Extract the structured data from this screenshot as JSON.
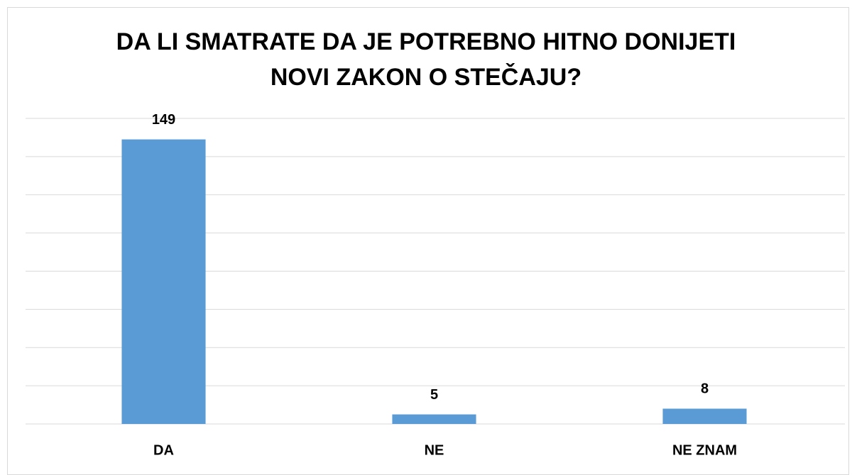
{
  "chart_data": {
    "type": "bar",
    "title": "DA LI SMATRATE DA JE POTREBNO HITNO DONIJETI NOVI ZAKON O STEČAJU?",
    "categories": [
      "DA",
      "NE",
      "NE ZNAM"
    ],
    "values": [
      149,
      5,
      8
    ],
    "color": "#5b9bd5",
    "ylim": [
      0,
      160
    ],
    "yticks": [
      0,
      20,
      40,
      60,
      80,
      100,
      120,
      140,
      160
    ],
    "grid": true
  }
}
